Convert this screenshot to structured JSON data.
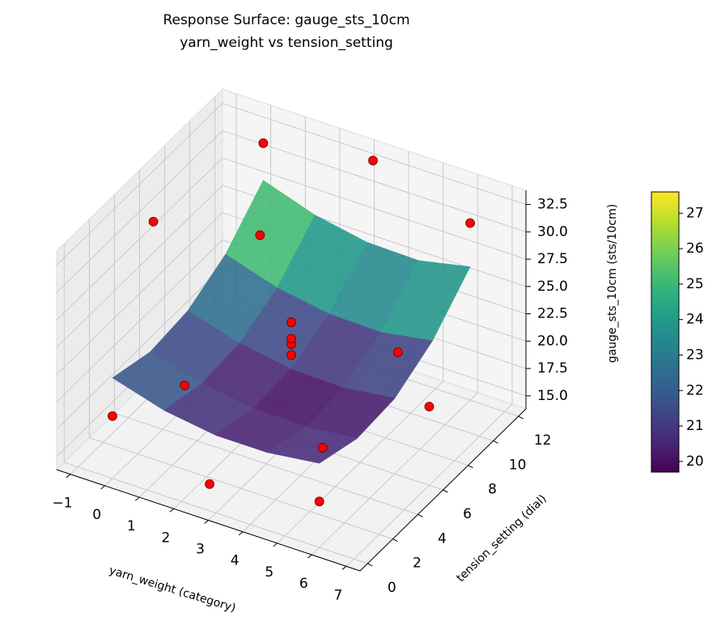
{
  "chart_data": {
    "type": "surface3d",
    "title": "Response Surface: gauge_sts_10cm",
    "subtitle": "yarn_weight vs tension_setting",
    "xlabel": "yarn_weight (category)",
    "ylabel": "tension_setting (dial)",
    "zlabel": "gauge_sts_10cm (sts/10cm)",
    "xlim": [
      -1.4,
      7.4
    ],
    "ylim": [
      -0.6,
      12.6
    ],
    "zlim": [
      13.8,
      33.8
    ],
    "xticks": [
      {
        "value": -1,
        "label": "−1"
      },
      0,
      1,
      2,
      3,
      4,
      5,
      6,
      7
    ],
    "yticks": [
      0,
      2,
      4,
      6,
      8,
      10,
      12
    ],
    "zticks": [
      {
        "value": 15,
        "label": "15.0"
      },
      17.5,
      {
        "value": 20,
        "label": "20.0"
      },
      22.5,
      {
        "value": 25,
        "label": "25.0"
      },
      27.5,
      {
        "value": 30,
        "label": "30.0"
      },
      32.5
    ],
    "surface": {
      "x": [
        0,
        1.5,
        3,
        4.5,
        6
      ],
      "y": [
        0,
        3,
        6,
        9,
        12
      ],
      "z": [
        [
          23.0,
          21.6,
          20.9,
          20.9,
          21.5
        ],
        [
          22.0,
          20.7,
          20.0,
          19.9,
          20.4
        ],
        [
          22.4,
          21.0,
          20.2,
          20.1,
          20.7
        ],
        [
          24.2,
          22.7,
          21.9,
          21.8,
          22.6
        ],
        [
          27.6,
          26.0,
          25.1,
          25.0,
          26.0
        ]
      ],
      "colormap": "viridis",
      "clim": [
        19.7,
        27.6
      ],
      "cticks": [
        20,
        21,
        22,
        23,
        24,
        25,
        26,
        27
      ]
    },
    "scatter": {
      "color": "#ff0000",
      "x": [
        0,
        6,
        0,
        6,
        -1,
        7,
        3,
        3,
        3,
        3,
        3,
        3,
        1,
        5,
        1,
        5
      ],
      "y": [
        0,
        0,
        12,
        12,
        6,
        6,
        -0.5,
        12.5,
        6,
        6,
        6,
        6,
        3,
        3,
        9,
        9
      ],
      "z": [
        19.5,
        18.0,
        31.0,
        30.0,
        29.5,
        21.0,
        17.0,
        32.0,
        21.5,
        22.5,
        23.0,
        24.5,
        20.0,
        18.5,
        27.0,
        20.5
      ]
    }
  }
}
